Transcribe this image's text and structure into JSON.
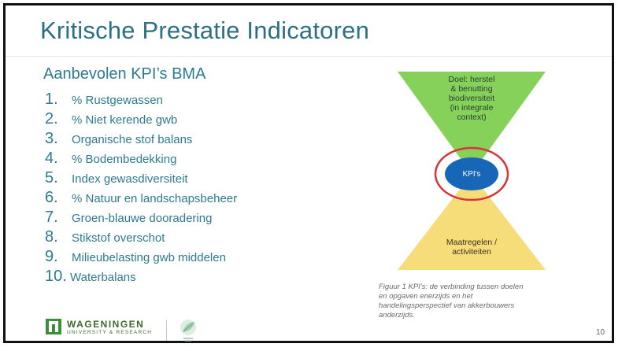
{
  "slide": {
    "title": "Kritische Prestatie Indicatoren",
    "subtitle": "Aanbevolen KPI’s BMA",
    "kpis": [
      {
        "number": "1.",
        "label": "% Rustgewassen"
      },
      {
        "number": "2.",
        "label": "% Niet kerende gwb"
      },
      {
        "number": "3.",
        "label": "Organische stof balans"
      },
      {
        "number": "4.",
        "label": "% Bodembedekking"
      },
      {
        "number": "5.",
        "label": "Index gewasdiversiteit"
      },
      {
        "number": "6.",
        "label": "% Natuur en landschapsbeheer"
      },
      {
        "number": "7.",
        "label": "Groen-blauwe dooradering"
      },
      {
        "number": "8.",
        "label": "Stikstof overschot"
      },
      {
        "number": "9.",
        "label": "Milieubelasting gwb middelen"
      },
      {
        "number": "10.",
        "label": "Waterbalans"
      }
    ],
    "page_number": "10"
  },
  "diagram": {
    "goal_lines": [
      "Doel: herstel",
      "& benutting",
      "biodiversiteit",
      "(in integrale",
      "context)"
    ],
    "center_label": "KPI's",
    "bottom_lines": [
      "Maatregelen /",
      "activiteiten"
    ],
    "colors": {
      "top_triangle": "#86d15a",
      "bottom_triangle": "#f7dc7a",
      "center_ellipse": "#1766b8",
      "highlight_ring": "#d8343a"
    }
  },
  "caption": {
    "lines": [
      "Figuur 1 KPI's: de verbinding tussen doelen",
      "en opgaven enerzijds en het",
      "handelingsperspectief  van akkerbouwers",
      "anderzijds."
    ]
  },
  "footer": {
    "logo_name": "WAGENINGEN",
    "logo_subtitle": "UNIVERSITY & RESEARCH"
  }
}
